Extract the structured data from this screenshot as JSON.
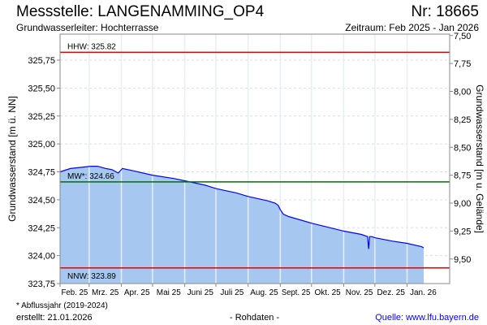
{
  "header": {
    "title": "Messstelle: LANGENAMMING_OP4",
    "nr": "Nr: 18665",
    "aquifer": "Grundwasserleiter:   Hochterrasse",
    "period": "Zeitraum: Feb 2025 - Jan 2026"
  },
  "footer": {
    "note": "* Abflussjahr (2019-2024)",
    "created": "erstellt:   21.01.2026",
    "raw": "- Rohdaten -",
    "source": "Quelle: www.lfu.bayern.de"
  },
  "colors": {
    "line": "#0000ff",
    "fill": "#a6c8f0",
    "hhw": "#e00000",
    "nnw": "#e00000",
    "mw": "#007000"
  },
  "chart_data": {
    "type": "area",
    "title": "Messstelle: LANGENAMMING_OP4",
    "ylabel": "Grundwasserstand [m ü. NN]",
    "y2label": "Grundwasserstand [m u. Gelände]",
    "ylim": [
      323.75,
      325.98
    ],
    "yticks": [
      "323,75",
      "324,00",
      "324,25",
      "324,50",
      "324,75",
      "325,00",
      "325,25",
      "325,50",
      "325,75"
    ],
    "ytick_values": [
      323.75,
      324.0,
      324.25,
      324.5,
      324.75,
      325.0,
      325.25,
      325.5,
      325.75
    ],
    "y2ticks": [
      "7,50",
      "7,75",
      "8,00",
      "8,25",
      "8,50",
      "8,75",
      "9,00",
      "9,25",
      "9,50"
    ],
    "y2tick_values": [
      7.5,
      7.75,
      8.0,
      8.25,
      8.5,
      8.75,
      9.0,
      9.25,
      9.5
    ],
    "ground_level": 333.47,
    "xlim_days": [
      0,
      375
    ],
    "xticks": [
      "Feb. 25",
      "Mrz. 25",
      "Apr. 25",
      "Mai 25",
      "Juni 25",
      "Juli 25",
      "Aug. 25",
      "Sept. 25",
      "Okt. 25",
      "Nov. 25",
      "Dez. 25",
      "Jan. 26"
    ],
    "xtick_days": [
      0,
      28,
      59,
      89,
      120,
      150,
      181,
      212,
      242,
      273,
      303,
      334
    ],
    "x_unit": "days since 2025-02-01",
    "series": [
      {
        "name": "Grundwasserstand",
        "x": [
          0,
          10,
          20,
          30,
          36,
          44,
          50,
          56,
          60,
          70,
          89,
          110,
          120,
          140,
          150,
          170,
          181,
          200,
          207,
          210,
          212,
          215,
          220,
          242,
          260,
          273,
          290,
          296,
          297,
          298,
          300,
          303,
          320,
          334,
          348,
          350
        ],
        "y": [
          324.75,
          324.78,
          324.79,
          324.8,
          324.8,
          324.78,
          324.77,
          324.74,
          324.78,
          324.76,
          324.72,
          324.69,
          324.67,
          324.63,
          324.6,
          324.56,
          324.53,
          324.49,
          324.47,
          324.45,
          324.41,
          324.37,
          324.35,
          324.29,
          324.25,
          324.22,
          324.19,
          324.17,
          324.06,
          324.17,
          324.17,
          324.16,
          324.13,
          324.11,
          324.08,
          324.07
        ]
      }
    ],
    "reference_lines": [
      {
        "label": "HHW: 325.82",
        "value": 325.82,
        "color": "#e00000"
      },
      {
        "label": "MW*: 324.66",
        "value": 324.66,
        "color": "#007000"
      },
      {
        "label": "NNW: 323.89",
        "value": 323.89,
        "color": "#e00000"
      }
    ],
    "grid": true
  }
}
